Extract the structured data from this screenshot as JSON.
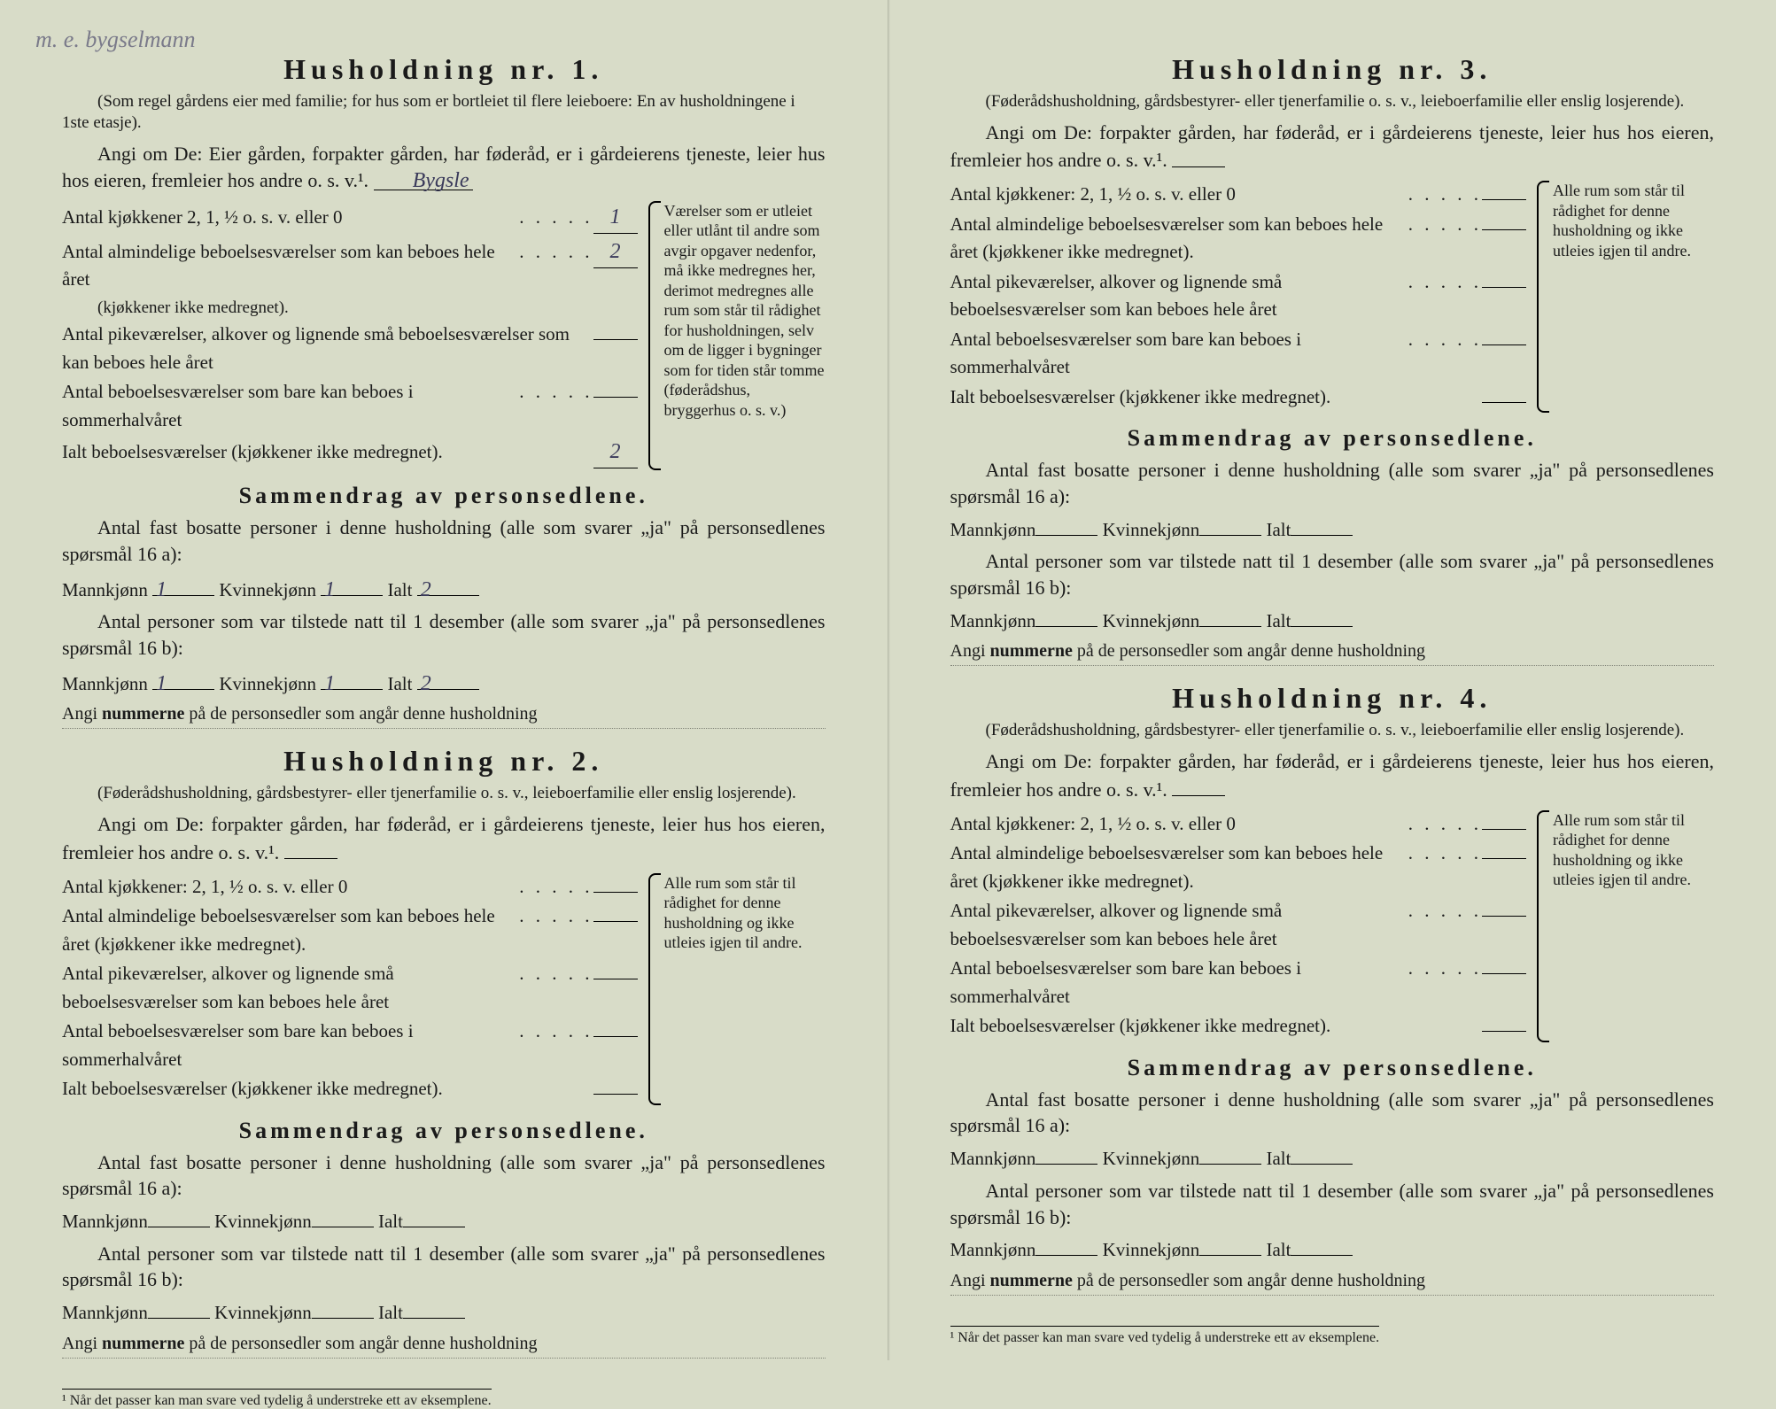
{
  "handwriting_note": "m. e. bygselmann",
  "household1": {
    "title": "Husholdning nr. 1.",
    "subnote": "(Som regel gårdens eier med familie; for hus som er bortleiet til flere leieboere: En av husholdningene i 1ste etasje).",
    "angi_prefix": "Angi om De:",
    "angi_text": "Eier gården, forpakter gården, har føderåd, er i gårdeierens tjeneste, leier hus hos eieren, fremleier hos andre o. s. v.¹.",
    "angi_hw": "Bygsle",
    "rows": {
      "kjokkener_label": "Antal kjøkkener 2, 1, ½ o. s. v. eller 0",
      "kjokkener_val": "1",
      "almindelige_label": "Antal almindelige beboelsesværelser som kan beboes hele året",
      "almindelige_sub": "(kjøkkener ikke medregnet).",
      "almindelige_val": "2",
      "pike_label": "Antal pikeværelser, alkover og lignende små beboelsesværelser som kan beboes hele året",
      "pike_val": "",
      "sommer_label": "Antal beboelsesværelser som bare kan beboes i sommerhalvåret",
      "sommer_val": "",
      "ialt_label": "Ialt beboelsesværelser (kjøkkener ikke medregnet).",
      "ialt_val": "2"
    },
    "sidenote": "Værelser som er utleiet eller utlånt til andre som avgir opgaver nedenfor, må ikke medregnes her, derimot medregnes alle rum som står til rådighet for husholdningen, selv om de ligger i bygninger som for tiden står tomme (føderådshus, bryggerhus o. s. v.)",
    "sammendrag_title": "Sammendrag av personsedlene.",
    "fast_text": "Antal fast bosatte personer i denne husholdning (alle som svarer „ja\" på personsedlenes spørsmål 16 a):",
    "mann_label": "Mannkjønn",
    "kvinne_label": "Kvinnekjønn",
    "ialt_pers_label": "Ialt",
    "fast_mann": "1",
    "fast_kvinne": "1",
    "fast_ialt": "2",
    "tilstede_text": "Antal personer som var tilstede natt til 1 desember (alle som svarer „ja\" på personsedlenes spørsmål 16 b):",
    "til_mann": "1",
    "til_kvinne": "1",
    "til_ialt": "2",
    "nummerne": "Angi nummerne på de personsedler som angår denne husholdning"
  },
  "household2": {
    "title": "Husholdning nr. 2.",
    "subnote": "(Føderådshusholdning, gårdsbestyrer- eller tjenerfamilie o. s. v., leieboerfamilie eller enslig losjerende).",
    "angi_prefix": "Angi om De:",
    "angi_text": "forpakter gården, har føderåd, er i gårdeierens tjeneste, leier hus hos eieren, fremleier hos andre o. s. v.¹.",
    "rows": {
      "kjokkener_label": "Antal kjøkkener: 2, 1, ½ o. s. v. eller 0",
      "almindelige_label": "Antal almindelige beboelsesværelser som kan beboes hele året (kjøkkener ikke medregnet).",
      "pike_label": "Antal pikeværelser, alkover og lignende små beboelsesværelser som kan beboes hele året",
      "sommer_label": "Antal beboelsesværelser som bare kan beboes i sommerhalvåret",
      "ialt_label": "Ialt beboelsesværelser (kjøkkener ikke medregnet)."
    },
    "sidenote": "Alle rum som står til rådighet for denne husholdning og ikke utleies igjen til andre.",
    "sammendrag_title": "Sammendrag av personsedlene.",
    "fast_text": "Antal fast bosatte personer i denne husholdning (alle som svarer „ja\" på personsedlenes spørsmål 16 a):",
    "tilstede_text": "Antal personer som var tilstede natt til 1 desember (alle som svarer „ja\" på personsedlenes spørsmål 16 b):",
    "nummerne": "Angi nummerne på de personsedler som angår denne husholdning"
  },
  "household3": {
    "title": "Husholdning nr. 3.",
    "subnote": "(Føderådshusholdning, gårdsbestyrer- eller tjenerfamilie o. s. v., leieboerfamilie eller enslig losjerende).",
    "angi_prefix": "Angi om De:",
    "angi_text": "forpakter gården, har føderåd, er i gårdeierens tjeneste, leier hus hos eieren, fremleier hos andre o. s. v.¹.",
    "rows": {
      "kjokkener_label": "Antal kjøkkener: 2, 1, ½ o. s. v. eller 0",
      "almindelige_label": "Antal almindelige beboelsesværelser som kan beboes hele året (kjøkkener ikke medregnet).",
      "pike_label": "Antal pikeværelser, alkover og lignende små beboelsesværelser som kan beboes hele året",
      "sommer_label": "Antal beboelsesværelser som bare kan beboes i sommerhalvåret",
      "ialt_label": "Ialt beboelsesværelser (kjøkkener ikke medregnet)."
    },
    "sidenote": "Alle rum som står til rådighet for denne husholdning og ikke utleies igjen til andre.",
    "sammendrag_title": "Sammendrag av personsedlene.",
    "fast_text": "Antal fast bosatte personer i denne husholdning (alle som svarer „ja\" på personsedlenes spørsmål 16 a):",
    "tilstede_text": "Antal personer som var tilstede natt til 1 desember (alle som svarer „ja\" på personsedlenes spørsmål 16 b):",
    "nummerne": "Angi nummerne på de personsedler som angår denne husholdning"
  },
  "household4": {
    "title": "Husholdning nr. 4.",
    "subnote": "(Føderådshusholdning, gårdsbestyrer- eller tjenerfamilie o. s. v., leieboerfamilie eller enslig losjerende).",
    "angi_prefix": "Angi om De:",
    "angi_text": "forpakter gården, har føderåd, er i gårdeierens tjeneste, leier hus hos eieren, fremleier hos andre o. s. v.¹.",
    "rows": {
      "kjokkener_label": "Antal kjøkkener: 2, 1, ½ o. s. v. eller 0",
      "almindelige_label": "Antal almindelige beboelsesværelser som kan beboes hele året (kjøkkener ikke medregnet).",
      "pike_label": "Antal pikeværelser, alkover og lignende små beboelsesværelser som kan beboes hele året",
      "sommer_label": "Antal beboelsesværelser som bare kan beboes i sommerhalvåret",
      "ialt_label": "Ialt beboelsesværelser (kjøkkener ikke medregnet)."
    },
    "sidenote": "Alle rum som står til rådighet for denne husholdning og ikke utleies igjen til andre.",
    "sammendrag_title": "Sammendrag av personsedlene.",
    "fast_text": "Antal fast bosatte personer i denne husholdning (alle som svarer „ja\" på personsedlenes spørsmål 16 a):",
    "tilstede_text": "Antal personer som var tilstede natt til 1 desember (alle som svarer „ja\" på personsedlenes spørsmål 16 b):",
    "nummerne": "Angi nummerne på de personsedler som angår denne husholdning"
  },
  "labels": {
    "mann": "Mannkjønn",
    "kvinne": "Kvinnekjønn",
    "ialt": "Ialt",
    "nummerne_bold": "nummerne"
  },
  "footnote": "¹ Når det passer kan man svare ved tydelig å understreke ett av eksemplene.",
  "colors": {
    "paper": "#d8dcc8",
    "ink": "#1a1a1a",
    "handwriting": "#7a7a8a"
  }
}
